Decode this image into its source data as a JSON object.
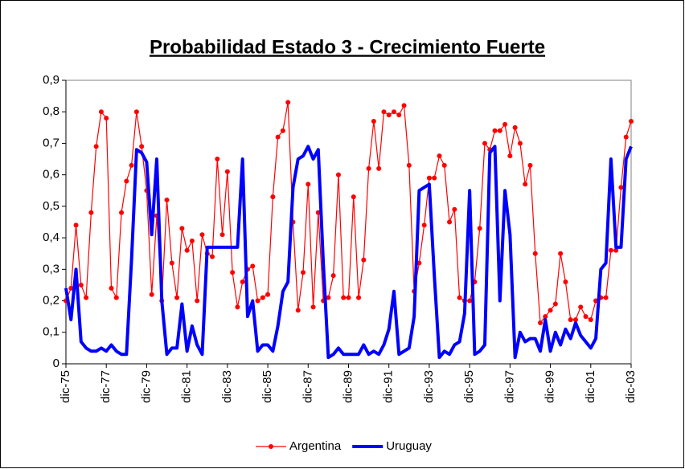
{
  "chart_data": {
    "type": "line",
    "title": "Probabilidad Estado 3 - Crecimiento Fuerte",
    "categories": [
      "dic-75",
      null,
      null,
      null,
      null,
      null,
      null,
      null,
      "dic-77",
      null,
      null,
      null,
      null,
      null,
      null,
      null,
      "dic-79",
      null,
      null,
      null,
      null,
      null,
      null,
      null,
      "dic-81",
      null,
      null,
      null,
      null,
      null,
      null,
      null,
      "dic-83",
      null,
      null,
      null,
      null,
      null,
      null,
      null,
      "dic-85",
      null,
      null,
      null,
      null,
      null,
      null,
      null,
      "dic-87",
      null,
      null,
      null,
      null,
      null,
      null,
      null,
      "dic-89",
      null,
      null,
      null,
      null,
      null,
      null,
      null,
      "dic-91",
      null,
      null,
      null,
      null,
      null,
      null,
      null,
      "dic-93",
      null,
      null,
      null,
      null,
      null,
      null,
      null,
      "dic-95",
      null,
      null,
      null,
      null,
      null,
      null,
      null,
      "dic-97",
      null,
      null,
      null,
      null,
      null,
      null,
      null,
      "dic-99",
      null,
      null,
      null,
      null,
      null,
      null,
      null,
      "dic-01",
      null,
      null,
      null,
      null,
      null,
      null,
      null,
      "dic-03"
    ],
    "series": [
      {
        "name": "Argentina",
        "color": "#ff0000",
        "marker": true,
        "width": 1.2,
        "values": [
          0.2,
          0.24,
          0.44,
          0.25,
          0.21,
          0.48,
          0.69,
          0.8,
          0.78,
          0.24,
          0.21,
          0.48,
          0.58,
          0.63,
          0.8,
          0.69,
          0.55,
          0.22,
          0.47,
          0.2,
          0.52,
          0.32,
          0.21,
          0.43,
          0.36,
          0.39,
          0.2,
          0.41,
          0.35,
          0.34,
          0.65,
          0.41,
          0.61,
          0.29,
          0.18,
          0.26,
          0.3,
          0.31,
          0.2,
          0.21,
          0.22,
          0.53,
          0.72,
          0.74,
          0.83,
          0.45,
          0.17,
          0.29,
          0.57,
          0.18,
          0.48,
          0.2,
          0.21,
          0.28,
          0.6,
          0.21,
          0.21,
          0.53,
          0.21,
          0.33,
          0.62,
          0.77,
          0.62,
          0.8,
          0.79,
          0.8,
          0.79,
          0.82,
          0.63,
          0.23,
          0.32,
          0.44,
          0.59,
          0.59,
          0.66,
          0.63,
          0.45,
          0.49,
          0.21,
          0.2,
          0.2,
          0.26,
          0.43,
          0.7,
          0.68,
          0.74,
          0.74,
          0.76,
          0.66,
          0.75,
          0.7,
          0.57,
          0.63,
          0.35,
          0.13,
          0.15,
          0.17,
          0.19,
          0.35,
          0.26,
          0.14,
          0.14,
          0.18,
          0.15,
          0.14,
          0.2,
          0.21,
          0.21,
          0.36,
          0.36,
          0.56,
          0.72,
          0.77
        ]
      },
      {
        "name": "Uruguay",
        "color": "#0000ff",
        "marker": false,
        "width": 4,
        "values": [
          0.24,
          0.14,
          0.3,
          0.07,
          0.05,
          0.04,
          0.04,
          0.05,
          0.04,
          0.06,
          0.04,
          0.03,
          0.03,
          0.33,
          0.68,
          0.67,
          0.64,
          0.41,
          0.65,
          0.2,
          0.03,
          0.05,
          0.05,
          0.19,
          0.04,
          0.12,
          0.06,
          0.03,
          0.37,
          0.37,
          0.37,
          0.37,
          0.37,
          0.37,
          0.37,
          0.65,
          0.15,
          0.2,
          0.04,
          0.06,
          0.06,
          0.04,
          0.12,
          0.23,
          0.26,
          0.56,
          0.65,
          0.66,
          0.69,
          0.65,
          0.68,
          0.32,
          0.02,
          0.03,
          0.05,
          0.03,
          0.03,
          0.03,
          0.03,
          0.06,
          0.03,
          0.04,
          0.03,
          0.06,
          0.11,
          0.23,
          0.03,
          0.04,
          0.05,
          0.15,
          0.55,
          0.56,
          0.57,
          0.28,
          0.02,
          0.04,
          0.03,
          0.06,
          0.07,
          0.16,
          0.55,
          0.03,
          0.04,
          0.06,
          0.67,
          0.69,
          0.2,
          0.55,
          0.41,
          0.02,
          0.1,
          0.07,
          0.08,
          0.08,
          0.04,
          0.14,
          0.04,
          0.1,
          0.06,
          0.11,
          0.08,
          0.13,
          0.09,
          0.07,
          0.05,
          0.08,
          0.3,
          0.32,
          0.65,
          0.37,
          0.37,
          0.65,
          0.69
        ]
      }
    ],
    "ylim": [
      0,
      0.9
    ],
    "yticks": [
      0,
      {
        "value": 0.1,
        "label": "0,1"
      },
      {
        "value": 0.2,
        "label": "0,2"
      },
      {
        "value": 0.3,
        "label": "0,3"
      },
      {
        "value": 0.4,
        "label": "0,4"
      },
      {
        "value": 0.5,
        "label": "0,5"
      },
      {
        "value": 0.6,
        "label": "0,6"
      },
      {
        "value": 0.7,
        "label": "0,7"
      },
      {
        "value": 0.8,
        "label": "0,8"
      },
      {
        "value": 0.9,
        "label": "0,9"
      }
    ],
    "legend": "bottom"
  }
}
